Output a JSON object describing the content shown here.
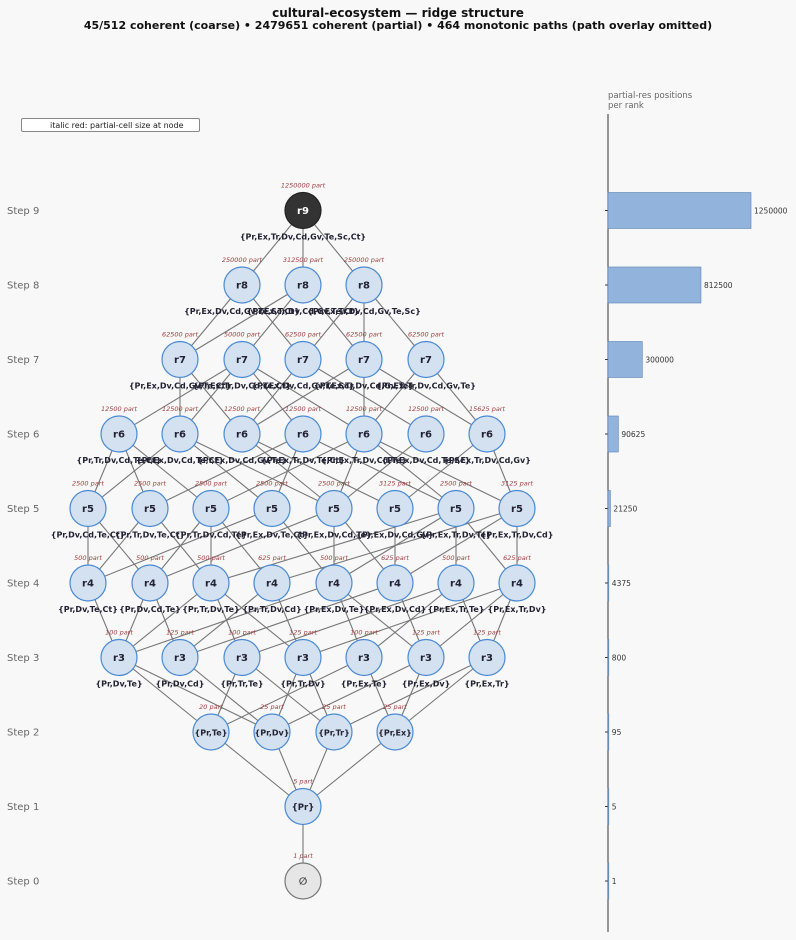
{
  "title": "cultural-ecosystem — ridge structure",
  "subtitle": "45/512 coherent (coarse)  •  2479651 coherent (partial)  •  464 monotonic paths (path overlay omitted)",
  "legend_text": "italic red: partial-cell size at node",
  "bar_title_line1": "partial-res positions",
  "bar_title_line2": "per rank",
  "steps": [
    "Step 0",
    "Step 1",
    "Step 2",
    "Step 3",
    "Step 4",
    "Step 5",
    "Step 6",
    "Step 7",
    "Step 8",
    "Step 9"
  ],
  "colors": {
    "node_fill": "#d3e1f0",
    "node_stroke": "#4a8ad4",
    "top_fill": "#333333",
    "bottom_fill": "#e6e6e6",
    "edge": "#777777",
    "part": "#a04040",
    "bar": "#92b4dc"
  },
  "rows": [
    {
      "rank": 0,
      "nodes": [
        {
          "label": "∅",
          "part": "1 part",
          "set": ""
        }
      ]
    },
    {
      "rank": 1,
      "nodes": [
        {
          "label": "{Pr}",
          "part": "5 part",
          "set": ""
        }
      ]
    },
    {
      "rank": 2,
      "nodes": [
        {
          "label": "{Pr,Te}",
          "part": "20 part",
          "set": ""
        },
        {
          "label": "{Pr,Dv}",
          "part": "25 part",
          "set": ""
        },
        {
          "label": "{Pr,Tr}",
          "part": "25 part",
          "set": ""
        },
        {
          "label": "{Pr,Ex}",
          "part": "25 part",
          "set": ""
        }
      ]
    },
    {
      "rank": 3,
      "nodes": [
        {
          "label": "r3",
          "part": "100 part",
          "set": "{Pr,Dv,Te}"
        },
        {
          "label": "r3",
          "part": "125 part",
          "set": "{Pr,Dv,Cd}"
        },
        {
          "label": "r3",
          "part": "100 part",
          "set": "{Pr,Tr,Te}"
        },
        {
          "label": "r3",
          "part": "125 part",
          "set": "{Pr,Tr,Dv}"
        },
        {
          "label": "r3",
          "part": "100 part",
          "set": "{Pr,Ex,Te}"
        },
        {
          "label": "r3",
          "part": "125 part",
          "set": "{Pr,Ex,Dv}"
        },
        {
          "label": "r3",
          "part": "125 part",
          "set": "{Pr,Ex,Tr}"
        }
      ]
    },
    {
      "rank": 4,
      "nodes": [
        {
          "label": "r4",
          "part": "500 part",
          "set": "{Pr,Dv,Te,Ct}"
        },
        {
          "label": "r4",
          "part": "500 part",
          "set": "{Pr,Dv,Cd,Te}"
        },
        {
          "label": "r4",
          "part": "500 part",
          "set": "{Pr,Tr,Dv,Te}"
        },
        {
          "label": "r4",
          "part": "625 part",
          "set": "{Pr,Tr,Dv,Cd}"
        },
        {
          "label": "r4",
          "part": "500 part",
          "set": "{Pr,Ex,Dv,Te}"
        },
        {
          "label": "r4",
          "part": "625 part",
          "set": "{Pr,Ex,Dv,Cd}"
        },
        {
          "label": "r4",
          "part": "500 part",
          "set": "{Pr,Ex,Tr,Te}"
        },
        {
          "label": "r4",
          "part": "625 part",
          "set": "{Pr,Ex,Tr,Dv}"
        }
      ]
    },
    {
      "rank": 5,
      "nodes": [
        {
          "label": "r5",
          "part": "2500 part",
          "set": "{Pr,Dv,Cd,Te,Ct}"
        },
        {
          "label": "r5",
          "part": "2500 part",
          "set": "{Pr,Tr,Dv,Te,Ct}"
        },
        {
          "label": "r5",
          "part": "2500 part",
          "set": "{Pr,Tr,Dv,Cd,Te}"
        },
        {
          "label": "r5",
          "part": "2500 part",
          "set": "{Pr,Ex,Dv,Te,Ct}"
        },
        {
          "label": "r5",
          "part": "2500 part",
          "set": "{Pr,Ex,Dv,Cd,Te}"
        },
        {
          "label": "r5",
          "part": "3125 part",
          "set": "{Pr,Ex,Dv,Cd,Gv}"
        },
        {
          "label": "r5",
          "part": "2500 part",
          "set": "{Pr,Ex,Tr,Dv,Te}"
        },
        {
          "label": "r5",
          "part": "3125 part",
          "set": "{Pr,Ex,Tr,Dv,Cd}"
        }
      ]
    },
    {
      "rank": 6,
      "nodes": [
        {
          "label": "r6",
          "part": "12500 part",
          "set": "{Pr,Tr,Dv,Cd,Te,Ct}"
        },
        {
          "label": "r6",
          "part": "12500 part",
          "set": "{Pr,Ex,Dv,Cd,Te,Ct}"
        },
        {
          "label": "r6",
          "part": "12500 part",
          "set": "{Pr,Ex,Dv,Cd,Gv,Te}"
        },
        {
          "label": "r6",
          "part": "12500 part",
          "set": "{Pr,Ex,Tr,Dv,Te,Ct}"
        },
        {
          "label": "r6",
          "part": "12500 part",
          "set": "{Pr,Ex,Tr,Dv,Cd,Te}"
        },
        {
          "label": "r6",
          "part": "12500 part",
          "set": "{Pr,Ex,Dv,Cd,Te,Sc}"
        },
        {
          "label": "r6",
          "part": "15625 part",
          "set": "{Pr,Ex,Tr,Dv,Cd,Gv}"
        }
      ]
    },
    {
      "rank": 7,
      "nodes": [
        {
          "label": "r7",
          "part": "62500 part",
          "set": "{Pr,Ex,Dv,Cd,Gv,Te,Ct}"
        },
        {
          "label": "r7",
          "part": "50000 part",
          "set": "{Pr,Ex,Tr,Dv,Cd,Te,Ct}"
        },
        {
          "label": "r7",
          "part": "62500 part",
          "set": "{Pr,Ex,Dv,Cd,Gv,Te,Sc}"
        },
        {
          "label": "r7",
          "part": "62500 part",
          "set": "{Pr,Ex,Tr,Dv,Cd,Gv,Te}"
        },
        {
          "label": "r7",
          "part": "62500 part",
          "set": "{Pr,Ex,Tr,Dv,Cd,Gv,Te}"
        }
      ]
    },
    {
      "rank": 8,
      "nodes": [
        {
          "label": "r8",
          "part": "250000 part",
          "set": "{Pr,Ex,Dv,Cd,Gv,Te,Sc,Ct}"
        },
        {
          "label": "r8",
          "part": "312500 part",
          "set": "{Pr,Ex,Tr,Dv,Cd,Gv,Te,Ct}"
        },
        {
          "label": "r8",
          "part": "250000 part",
          "set": "{Pr,Ex,Tr,Dv,Cd,Gv,Te,Sc}"
        }
      ]
    },
    {
      "rank": 9,
      "nodes": [
        {
          "label": "r9",
          "part": "1250000 part",
          "set": "{Pr,Ex,Tr,Dv,Cd,Gv,Te,Sc,Ct}"
        }
      ]
    }
  ],
  "edges": [
    [
      0,
      0,
      1,
      0
    ],
    [
      1,
      0,
      2,
      0
    ],
    [
      1,
      0,
      2,
      1
    ],
    [
      1,
      0,
      2,
      2
    ],
    [
      1,
      0,
      2,
      3
    ],
    [
      2,
      0,
      3,
      0
    ],
    [
      2,
      0,
      3,
      2
    ],
    [
      2,
      0,
      3,
      4
    ],
    [
      2,
      1,
      3,
      0
    ],
    [
      2,
      1,
      3,
      1
    ],
    [
      2,
      1,
      3,
      3
    ],
    [
      2,
      1,
      3,
      5
    ],
    [
      2,
      2,
      3,
      2
    ],
    [
      2,
      2,
      3,
      3
    ],
    [
      2,
      2,
      3,
      6
    ],
    [
      2,
      3,
      3,
      4
    ],
    [
      2,
      3,
      3,
      5
    ],
    [
      2,
      3,
      3,
      6
    ],
    [
      3,
      0,
      4,
      0
    ],
    [
      3,
      0,
      4,
      1
    ],
    [
      3,
      0,
      4,
      2
    ],
    [
      3,
      0,
      4,
      4
    ],
    [
      3,
      1,
      4,
      1
    ],
    [
      3,
      1,
      4,
      3
    ],
    [
      3,
      1,
      4,
      5
    ],
    [
      3,
      2,
      4,
      2
    ],
    [
      3,
      2,
      4,
      6
    ],
    [
      3,
      3,
      4,
      2
    ],
    [
      3,
      3,
      4,
      3
    ],
    [
      3,
      3,
      4,
      7
    ],
    [
      3,
      4,
      4,
      4
    ],
    [
      3,
      4,
      4,
      6
    ],
    [
      3,
      5,
      4,
      4
    ],
    [
      3,
      5,
      4,
      5
    ],
    [
      3,
      5,
      4,
      7
    ],
    [
      3,
      6,
      4,
      6
    ],
    [
      3,
      6,
      4,
      7
    ],
    [
      4,
      0,
      5,
      0
    ],
    [
      4,
      0,
      5,
      1
    ],
    [
      4,
      0,
      5,
      3
    ],
    [
      4,
      1,
      5,
      0
    ],
    [
      4,
      1,
      5,
      2
    ],
    [
      4,
      1,
      5,
      4
    ],
    [
      4,
      2,
      5,
      1
    ],
    [
      4,
      2,
      5,
      2
    ],
    [
      4,
      2,
      5,
      6
    ],
    [
      4,
      3,
      5,
      2
    ],
    [
      4,
      3,
      5,
      7
    ],
    [
      4,
      4,
      5,
      3
    ],
    [
      4,
      4,
      5,
      4
    ],
    [
      4,
      4,
      5,
      6
    ],
    [
      4,
      5,
      5,
      4
    ],
    [
      4,
      5,
      5,
      5
    ],
    [
      4,
      5,
      5,
      7
    ],
    [
      4,
      6,
      5,
      6
    ],
    [
      4,
      7,
      5,
      6
    ],
    [
      4,
      7,
      5,
      7
    ],
    [
      5,
      0,
      6,
      0
    ],
    [
      5,
      0,
      6,
      1
    ],
    [
      5,
      1,
      6,
      0
    ],
    [
      5,
      1,
      6,
      3
    ],
    [
      5,
      2,
      6,
      0
    ],
    [
      5,
      2,
      6,
      4
    ],
    [
      5,
      3,
      6,
      1
    ],
    [
      5,
      3,
      6,
      3
    ],
    [
      5,
      4,
      6,
      1
    ],
    [
      5,
      4,
      6,
      2
    ],
    [
      5,
      4,
      6,
      4
    ],
    [
      5,
      4,
      6,
      5
    ],
    [
      5,
      5,
      6,
      2
    ],
    [
      5,
      5,
      6,
      6
    ],
    [
      5,
      6,
      6,
      3
    ],
    [
      5,
      6,
      6,
      4
    ],
    [
      5,
      7,
      6,
      4
    ],
    [
      5,
      7,
      6,
      6
    ],
    [
      6,
      0,
      7,
      1
    ],
    [
      6,
      1,
      7,
      0
    ],
    [
      6,
      1,
      7,
      1
    ],
    [
      6,
      2,
      7,
      0
    ],
    [
      6,
      2,
      7,
      2
    ],
    [
      6,
      2,
      7,
      3
    ],
    [
      6,
      3,
      7,
      1
    ],
    [
      6,
      4,
      7,
      1
    ],
    [
      6,
      4,
      7,
      3
    ],
    [
      6,
      4,
      7,
      4
    ],
    [
      6,
      5,
      7,
      2
    ],
    [
      6,
      6,
      7,
      3
    ],
    [
      6,
      6,
      7,
      4
    ],
    [
      7,
      0,
      8,
      0
    ],
    [
      7,
      0,
      8,
      1
    ],
    [
      7,
      1,
      8,
      1
    ],
    [
      7,
      2,
      8,
      0
    ],
    [
      7,
      2,
      8,
      2
    ],
    [
      7,
      3,
      8,
      1
    ],
    [
      7,
      3,
      8,
      2
    ],
    [
      7,
      4,
      8,
      2
    ],
    [
      8,
      0,
      9,
      0
    ],
    [
      8,
      1,
      9,
      0
    ],
    [
      8,
      2,
      9,
      0
    ]
  ],
  "bar_values": [
    1,
    5,
    95,
    800,
    4375,
    21250,
    90625,
    300000,
    812500,
    1250000
  ],
  "bar_labels": [
    "1",
    "5",
    "95",
    "800",
    "4375",
    "21250",
    "90625",
    "300000",
    "812500",
    "1250000"
  ]
}
